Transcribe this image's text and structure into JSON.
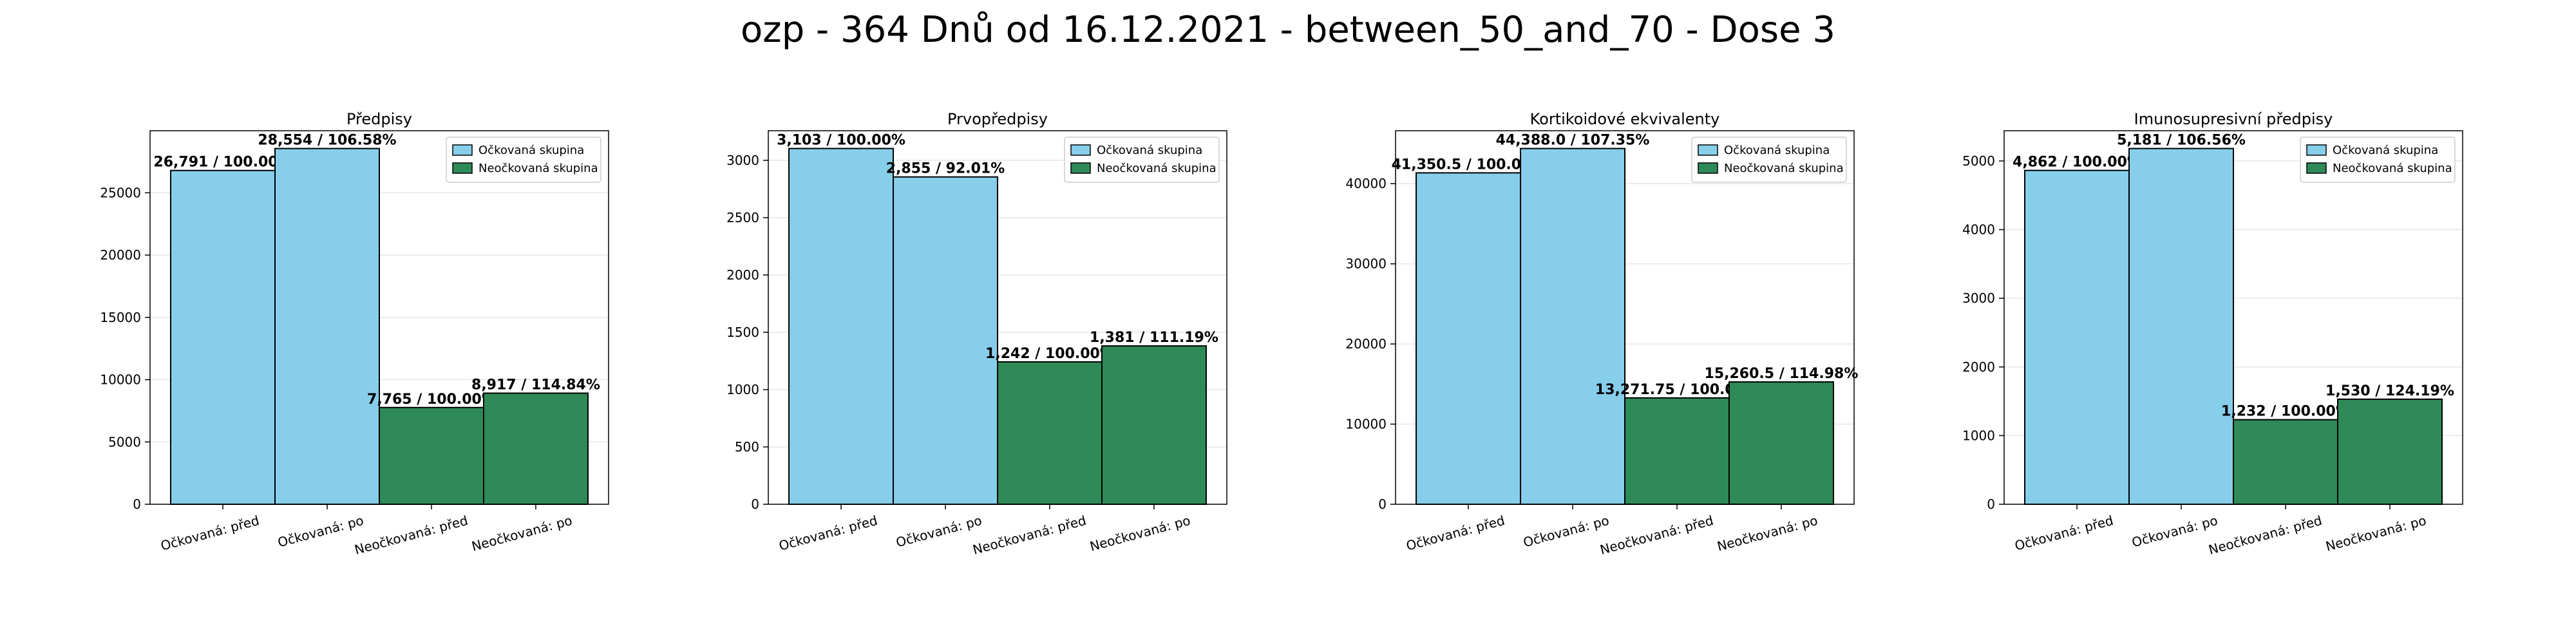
{
  "suptitle": "ozp - 364 Dnů od 16.12.2021 - between_50_and_70 - Dose 3",
  "colors": {
    "vaccinated": "#87ceeb",
    "unvaccinated": "#2e8b57",
    "edge": "#000000",
    "grid": "#e6e6e6"
  },
  "legend_labels": [
    "Očkovaná skupina",
    "Neočkovaná skupina"
  ],
  "chart_data": [
    {
      "type": "bar",
      "title": "Předpisy",
      "categories": [
        "Očkovaná: před",
        "Očkovaná: po",
        "Neočkovaná: před",
        "Neočkovaná: po"
      ],
      "values": [
        26791,
        28554,
        7765,
        8917
      ],
      "data_labels": [
        "26,791 / 100.00%",
        "28,554 / 106.58%",
        "7,765 / 100.00%",
        "8,917 / 114.84%"
      ],
      "groups": [
        "vaccinated",
        "vaccinated",
        "unvaccinated",
        "unvaccinated"
      ],
      "yticks": [
        0,
        5000,
        10000,
        15000,
        20000,
        25000
      ],
      "ylim": [
        0,
        29982
      ],
      "grid": true,
      "legend": "top-right"
    },
    {
      "type": "bar",
      "title": "Prvopředpisy",
      "categories": [
        "Očkovaná: před",
        "Očkovaná: po",
        "Neočkovaná: před",
        "Neočkovaná: po"
      ],
      "values": [
        3103,
        2855,
        1242,
        1381
      ],
      "data_labels": [
        "3,103 / 100.00%",
        "2,855 / 92.01%",
        "1,242 / 100.00%",
        "1,381 / 111.19%"
      ],
      "groups": [
        "vaccinated",
        "vaccinated",
        "unvaccinated",
        "unvaccinated"
      ],
      "yticks": [
        0,
        500,
        1000,
        1500,
        2000,
        2500,
        3000
      ],
      "ylim": [
        0,
        3258
      ],
      "grid": true,
      "legend": "top-right"
    },
    {
      "type": "bar",
      "title": "Kortikoidové ekvivalenty",
      "categories": [
        "Očkovaná: před",
        "Očkovaná: po",
        "Neočkovaná: před",
        "Neočkovaná: po"
      ],
      "values": [
        41350.5,
        44388.0,
        13271.75,
        15260.5
      ],
      "data_labels": [
        "41,350.5 / 100.00%",
        "44,388.0 / 107.35%",
        "13,271.75 / 100.00%",
        "15,260.5 / 114.98%"
      ],
      "groups": [
        "vaccinated",
        "vaccinated",
        "unvaccinated",
        "unvaccinated"
      ],
      "yticks": [
        0,
        10000,
        20000,
        30000,
        40000
      ],
      "ylim": [
        0,
        46607
      ],
      "grid": true,
      "legend": "top-right"
    },
    {
      "type": "bar",
      "title": "Imunosupresivní předpisy",
      "categories": [
        "Očkovaná: před",
        "Očkovaná: po",
        "Neočkovaná: před",
        "Neočkovaná: po"
      ],
      "values": [
        4862,
        5181,
        1232,
        1530
      ],
      "data_labels": [
        "4,862 / 100.00%",
        "5,181 / 106.56%",
        "1,232 / 100.00%",
        "1,530 / 124.19%"
      ],
      "groups": [
        "vaccinated",
        "vaccinated",
        "unvaccinated",
        "unvaccinated"
      ],
      "yticks": [
        0,
        1000,
        2000,
        3000,
        4000,
        5000
      ],
      "ylim": [
        0,
        5440
      ],
      "grid": true,
      "legend": "top-right"
    }
  ]
}
